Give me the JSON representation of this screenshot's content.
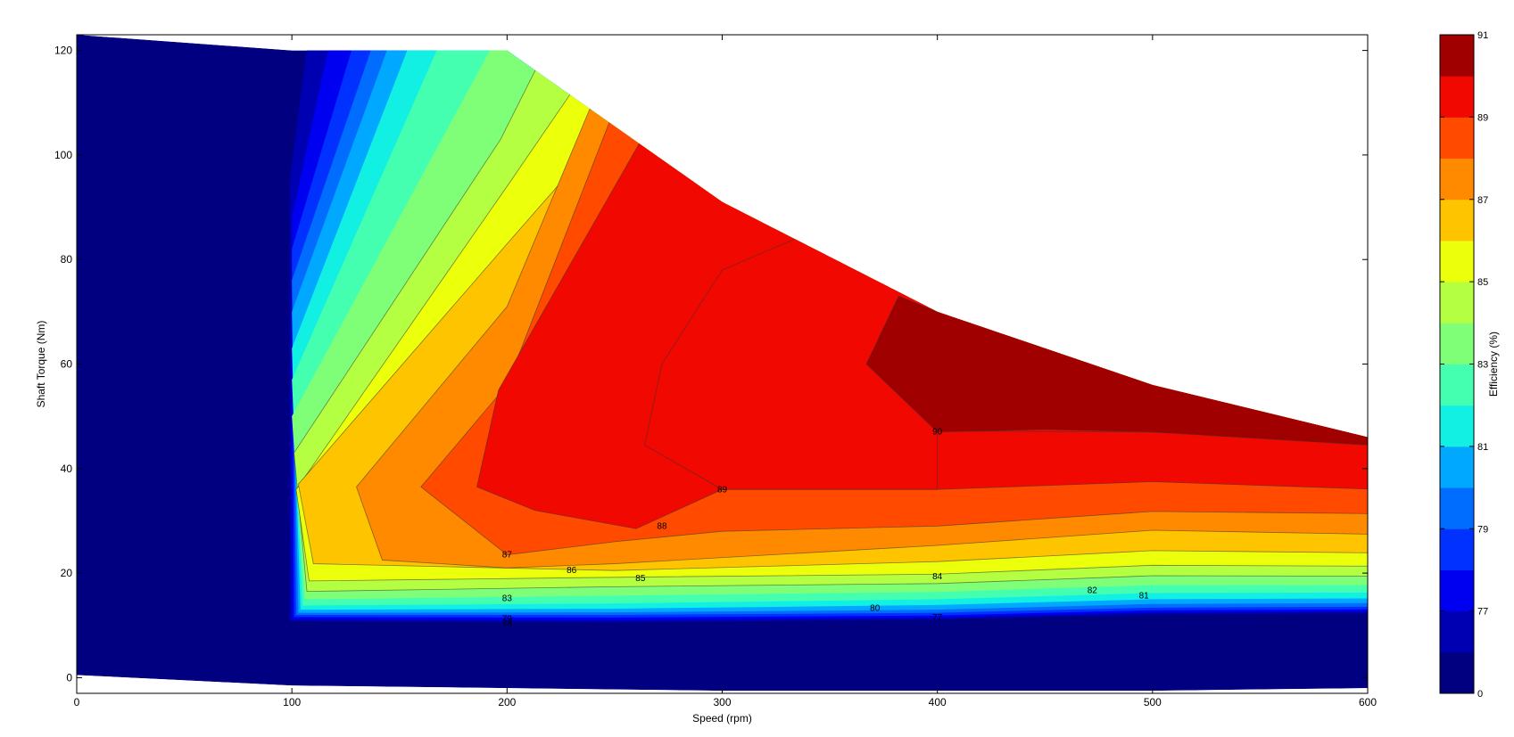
{
  "chart_data": {
    "type": "heatmap",
    "subtype": "filled-contour",
    "title": "",
    "xlabel": "Speed  (rpm)",
    "ylabel": "Shaft Torque  (Nm)",
    "xlim": [
      0,
      600
    ],
    "ylim": [
      -3,
      123
    ],
    "xticks": [
      0,
      100,
      200,
      300,
      400,
      500,
      600
    ],
    "yticks": [
      0,
      20,
      40,
      60,
      80,
      100,
      120
    ],
    "grid": false,
    "colorbar": {
      "label": "Efficiency (%)",
      "range": [
        0,
        91
      ],
      "tick_labels": [
        "0",
        "77",
        "79",
        "81",
        "83",
        "85",
        "87",
        "89",
        "91"
      ],
      "levels": [
        {
          "label": "0-76",
          "color": "#000080"
        },
        {
          "label": "76-77",
          "color": "#0000b3"
        },
        {
          "label": "77-78",
          "color": "#0000f1"
        },
        {
          "label": "78-79",
          "color": "#0031ff"
        },
        {
          "label": "79-80",
          "color": "#006dff"
        },
        {
          "label": "80-81",
          "color": "#00a9ff"
        },
        {
          "label": "81-82",
          "color": "#12f0e4"
        },
        {
          "label": "82-83",
          "color": "#45ffb1"
        },
        {
          "label": "83-84",
          "color": "#7fff77"
        },
        {
          "label": "84-85",
          "color": "#b4ff42"
        },
        {
          "label": "85-86",
          "color": "#ecff0b"
        },
        {
          "label": "86-87",
          "color": "#ffc400"
        },
        {
          "label": "87-88",
          "color": "#ff8a00"
        },
        {
          "label": "88-89",
          "color": "#ff4a00"
        },
        {
          "label": "89-90",
          "color": "#f10800"
        },
        {
          "label": "90-91",
          "color": "#a00000"
        }
      ]
    },
    "envelope": {
      "speed": [
        0,
        100,
        200,
        300,
        400,
        500,
        600
      ],
      "max_torque": [
        123,
        120,
        120,
        91,
        70,
        56,
        46
      ],
      "min_torque": [
        0.5,
        -1.5,
        -2,
        -2.5,
        -2.5,
        -2.5,
        -2
      ]
    },
    "contour_labels": [
      {
        "text": "90",
        "x": 400,
        "y": 47
      },
      {
        "text": "89",
        "x": 300,
        "y": 36
      },
      {
        "text": "88",
        "x": 272,
        "y": 29
      },
      {
        "text": "87",
        "x": 200,
        "y": 23.5
      },
      {
        "text": "86",
        "x": 230,
        "y": 20.5
      },
      {
        "text": "85",
        "x": 262,
        "y": 19
      },
      {
        "text": "84",
        "x": 400,
        "y": 19.3
      },
      {
        "text": "83",
        "x": 200,
        "y": 15.2
      },
      {
        "text": "82",
        "x": 472,
        "y": 16.7
      },
      {
        "text": "81",
        "x": 496,
        "y": 15.7
      },
      {
        "text": "80",
        "x": 371,
        "y": 13.3
      },
      {
        "text": "79",
        "x": 200,
        "y": 11.2
      },
      {
        "text": "78",
        "x": 200,
        "y": 10.4
      },
      {
        "text": "77",
        "x": 400,
        "y": 11.5
      }
    ]
  }
}
